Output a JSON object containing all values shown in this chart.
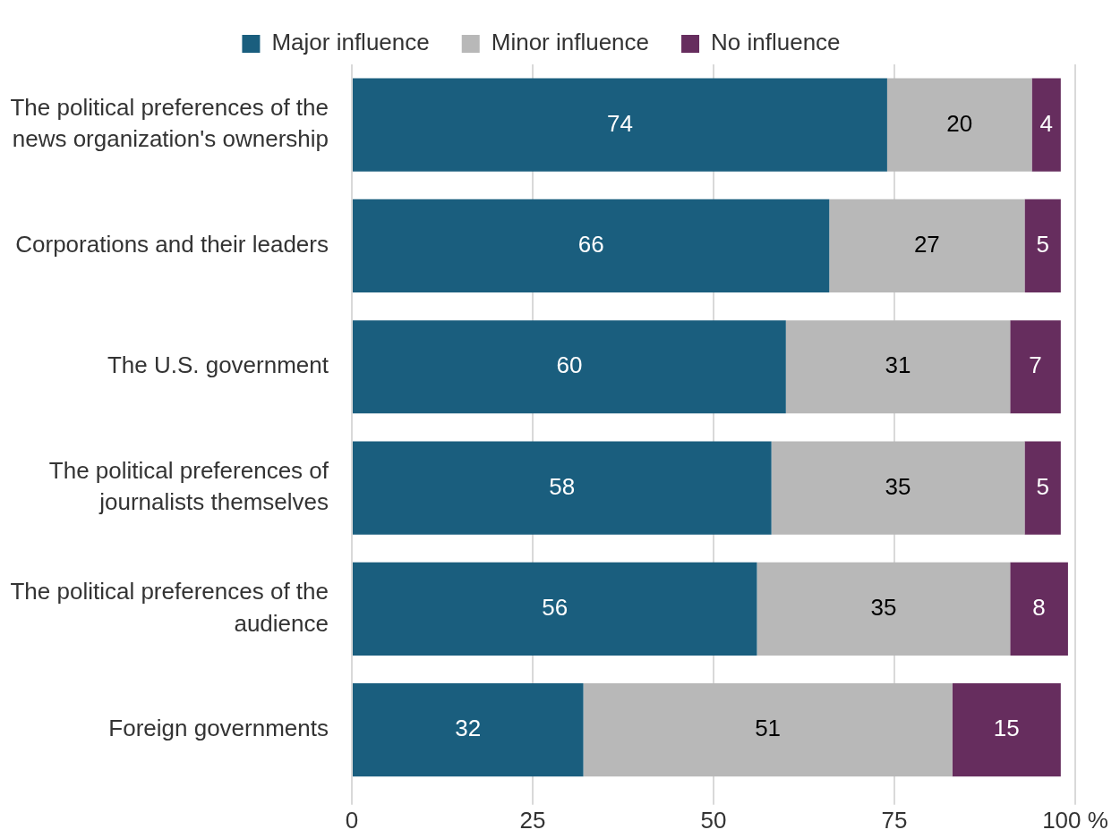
{
  "chart_data": {
    "type": "bar",
    "orientation": "horizontal",
    "stacked": true,
    "categories": [
      "The political preferences of the news organization's ownership",
      "Corporations and their leaders",
      "The U.S. government",
      "The political preferences of journalists themselves",
      "The political preferences of the audience",
      "Foreign governments"
    ],
    "series": [
      {
        "name": "Major influence",
        "color": "#1a5e7e",
        "values": [
          74,
          66,
          60,
          58,
          56,
          32
        ]
      },
      {
        "name": "Minor influence",
        "color": "#b8b8b8",
        "values": [
          20,
          27,
          31,
          35,
          35,
          51
        ]
      },
      {
        "name": "No influence",
        "color": "#662d5e",
        "values": [
          4,
          5,
          7,
          5,
          8,
          15
        ]
      }
    ],
    "xlim": [
      0,
      100
    ],
    "xticks": [
      0,
      25,
      50,
      75,
      {
        "value": 100,
        "label": "100 %"
      }
    ],
    "grid": "x",
    "legend": "top",
    "data_labels": true
  }
}
